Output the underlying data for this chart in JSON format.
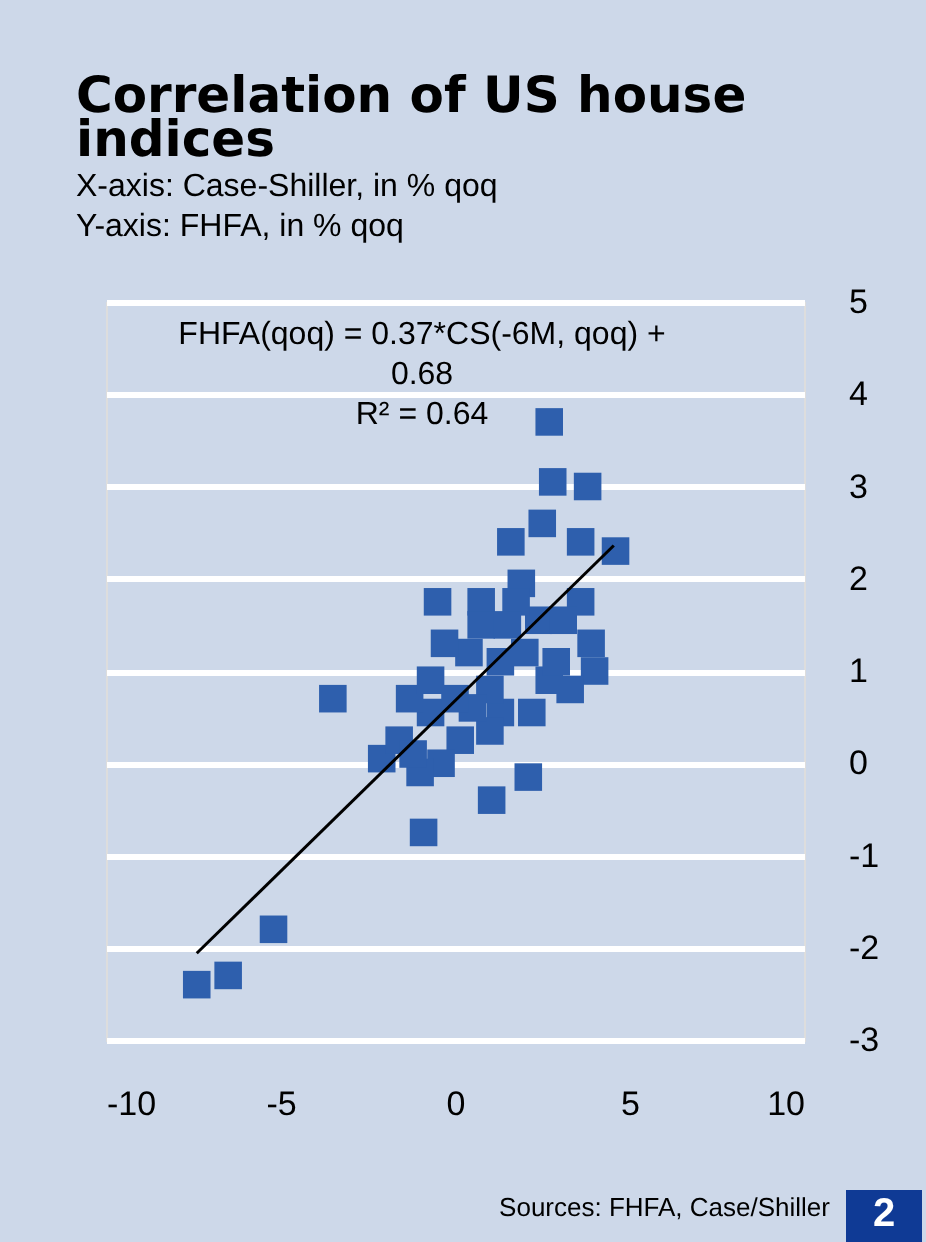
{
  "chart_data": {
    "type": "scatter",
    "title": "Correlation of US house indices",
    "xlabel": "X-axis: Case-Shiller, in % qoq",
    "ylabel": "Y-axis: FHFA, in % qoq",
    "xlim": [
      -10,
      10
    ],
    "xticks": [
      -10,
      -5,
      0,
      5,
      10
    ],
    "ylim": [
      -3,
      5
    ],
    "yticks": [
      -3,
      -2,
      -1,
      0,
      1,
      2,
      3,
      4,
      5
    ],
    "grid": "y",
    "series": [
      {
        "marker": "square",
        "color": "#2e5fad",
        "x": [
          -7.4,
          -6.5,
          -5.2,
          -3.5,
          -2.1,
          -0.9,
          -0.5,
          1.05,
          2.1,
          2.7,
          2.8,
          3.8,
          4.6,
          2.5,
          3.6,
          -0.7,
          -1.3,
          -1.6,
          0.75,
          1.3,
          1.9,
          1.6,
          0.4,
          2.4,
          3.6,
          3.9,
          4.0,
          3.3,
          2.2,
          1.3,
          0.15,
          -0.4,
          -1.0,
          1.0,
          0.75,
          -0.3,
          2.0,
          2.7,
          3.1,
          1.75,
          1.0,
          -0.7,
          0.5,
          1.5,
          2.9,
          -1.2,
          0.0
        ],
        "values": [
          -2.4,
          -2.3,
          -1.8,
          0.7,
          0.05,
          -0.75,
          1.75,
          -0.4,
          -0.15,
          3.7,
          3.05,
          3.0,
          2.3,
          2.6,
          2.4,
          0.55,
          0.7,
          0.25,
          1.75,
          1.1,
          1.95,
          2.4,
          1.2,
          1.55,
          1.75,
          1.3,
          1.0,
          0.8,
          0.55,
          0.55,
          0.25,
          0.0,
          -0.1,
          0.8,
          1.5,
          1.3,
          1.2,
          0.9,
          1.55,
          1.75,
          0.35,
          0.9,
          0.6,
          1.5,
          1.1,
          0.1,
          0.7
        ]
      },
      {
        "type": "line",
        "marker": "none",
        "color": "#000000",
        "x": [
          -7.4,
          4.55
        ],
        "values": [
          -2.06,
          2.36
        ]
      }
    ],
    "annotations": [
      "FHFA(qoq) = 0.37*CS(-6M, qoq) + 0.68",
      "R² = 0.64",
      "Sources: FHFA, Case/Shiller",
      "2"
    ]
  }
}
